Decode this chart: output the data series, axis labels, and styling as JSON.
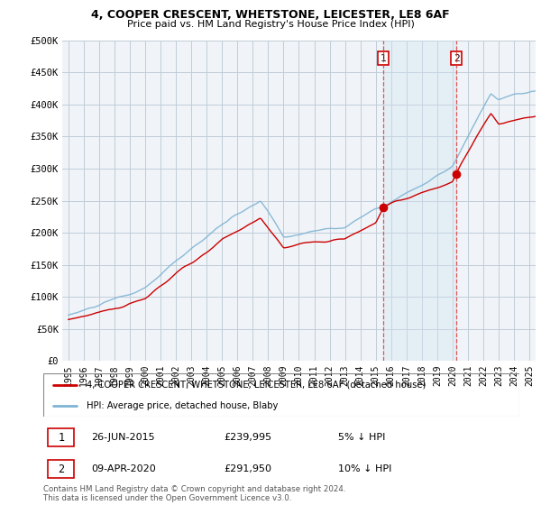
{
  "title": "4, COOPER CRESCENT, WHETSTONE, LEICESTER, LE8 6AF",
  "subtitle": "Price paid vs. HM Land Registry's House Price Index (HPI)",
  "legend_line1": "4, COOPER CRESCENT, WHETSTONE, LEICESTER, LE8 6AF (detached house)",
  "legend_line2": "HPI: Average price, detached house, Blaby",
  "annotation1_date": "26-JUN-2015",
  "annotation1_price": "£239,995",
  "annotation1_pct": "5% ↓ HPI",
  "annotation2_date": "09-APR-2020",
  "annotation2_price": "£291,950",
  "annotation2_pct": "10% ↓ HPI",
  "footer": "Contains HM Land Registry data © Crown copyright and database right 2024.\nThis data is licensed under the Open Government Licence v3.0.",
  "hpi_color": "#7fb3d3",
  "price_color": "#cc0000",
  "sale1_x": 2015.5,
  "sale1_y": 239995,
  "sale2_x": 2020.25,
  "sale2_y": 291950,
  "shade_color": "#d0e4f0",
  "grid_color": "#c0ccd8",
  "bg_color": "#f0f4f8",
  "ylim": [
    0,
    500000
  ],
  "xlim_start": 1994.6,
  "xlim_end": 2025.4
}
